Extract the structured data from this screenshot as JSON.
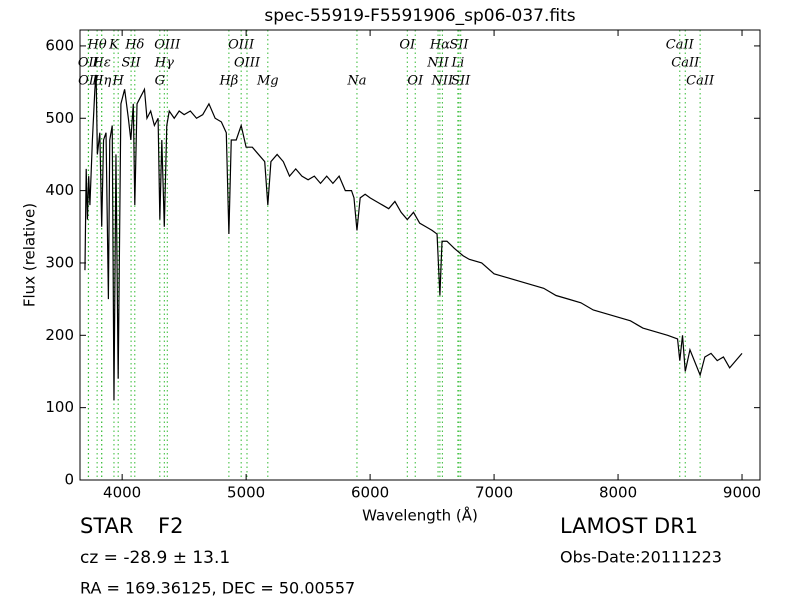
{
  "chart_data": {
    "type": "line",
    "title": "spec-55919-F5591906_sp06-037.fits",
    "x_label": "Wavelength (Å)",
    "y_label": "Flux (relative)",
    "xlim": [
      3660,
      9145
    ],
    "ylim": [
      0,
      622
    ],
    "xticks": [
      4000,
      5000,
      6000,
      7000,
      8000,
      9000
    ],
    "yticks": [
      0,
      100,
      200,
      300,
      400,
      500,
      600
    ],
    "color": "#000000",
    "line_color": "#33bb33",
    "x": [
      3700,
      3710,
      3720,
      3730,
      3740,
      3760,
      3780,
      3790,
      3800,
      3820,
      3835,
      3850,
      3870,
      3889,
      3900,
      3920,
      3934,
      3950,
      3968,
      3990,
      4020,
      4050,
      4070,
      4090,
      4102,
      4120,
      4150,
      4180,
      4200,
      4230,
      4260,
      4290,
      4304,
      4320,
      4340,
      4360,
      4380,
      4420,
      4460,
      4500,
      4550,
      4600,
      4650,
      4700,
      4750,
      4800,
      4840,
      4861,
      4880,
      4920,
      4960,
      5000,
      5050,
      5100,
      5150,
      5175,
      5200,
      5250,
      5300,
      5350,
      5400,
      5450,
      5500,
      5550,
      5600,
      5650,
      5700,
      5750,
      5800,
      5850,
      5870,
      5894,
      5920,
      5960,
      6000,
      6050,
      6100,
      6150,
      6200,
      6250,
      6300,
      6350,
      6400,
      6450,
      6500,
      6540,
      6563,
      6580,
      6620,
      6680,
      6750,
      6800,
      6900,
      7000,
      7100,
      7200,
      7300,
      7400,
      7500,
      7600,
      7700,
      7800,
      7900,
      8000,
      8100,
      8200,
      8300,
      8400,
      8480,
      8498,
      8520,
      8542,
      8580,
      8662,
      8700,
      8750,
      8800,
      8850,
      8900,
      8950,
      9000
    ],
    "values": [
      290,
      430,
      360,
      420,
      380,
      470,
      540,
      560,
      450,
      480,
      350,
      470,
      480,
      250,
      470,
      490,
      110,
      450,
      140,
      520,
      540,
      500,
      470,
      520,
      380,
      520,
      530,
      540,
      500,
      510,
      490,
      500,
      360,
      470,
      350,
      490,
      510,
      500,
      510,
      505,
      510,
      500,
      505,
      520,
      500,
      495,
      480,
      340,
      470,
      470,
      490,
      460,
      460,
      450,
      440,
      380,
      440,
      450,
      440,
      420,
      430,
      420,
      415,
      420,
      410,
      420,
      410,
      420,
      400,
      400,
      390,
      345,
      390,
      395,
      390,
      385,
      380,
      375,
      385,
      370,
      360,
      370,
      355,
      350,
      345,
      340,
      255,
      330,
      330,
      320,
      310,
      305,
      300,
      285,
      280,
      275,
      270,
      265,
      255,
      250,
      245,
      235,
      230,
      225,
      220,
      210,
      205,
      200,
      195,
      165,
      200,
      150,
      180,
      145,
      170,
      175,
      165,
      170,
      155,
      165,
      175
    ],
    "spectral_lines": [
      [
        {
          "label": "Hθ",
          "x": 3798
        },
        {
          "label": "K",
          "x": 3934
        },
        {
          "label": "Hδ",
          "x": 4102
        },
        {
          "label": "OIII",
          "x": 4364
        },
        {
          "label": "OIII",
          "x": 4960
        },
        {
          "label": "OI",
          "x": 6300
        },
        {
          "label": "Hα",
          "x": 6563
        },
        {
          "label": "SII",
          "x": 6717
        },
        {
          "label": "CaII",
          "x": 8498
        }
      ],
      [
        {
          "label": "OII",
          "x": 3727
        },
        {
          "label": "Hε",
          "x": 3835
        },
        {
          "label": "SII",
          "x": 4072
        },
        {
          "label": "Hγ",
          "x": 4340
        },
        {
          "label": "OIII",
          "x": 5007
        },
        {
          "label": "NII",
          "x": 6548
        },
        {
          "label": "Li",
          "x": 6708
        },
        {
          "label": "CaII",
          "x": 8542
        }
      ],
      [
        {
          "label": "OII",
          "x": 3729
        },
        {
          "label": "Hη",
          "x": 3835
        },
        {
          "label": "H",
          "x": 3968
        },
        {
          "label": "G",
          "x": 4304
        },
        {
          "label": "Hβ",
          "x": 4861
        },
        {
          "label": "Mg",
          "x": 5175
        },
        {
          "label": "Na",
          "x": 5894
        },
        {
          "label": "OI",
          "x": 6364
        },
        {
          "label": "NII",
          "x": 6583
        },
        {
          "label": "SII",
          "x": 6731
        },
        {
          "label": "CaII",
          "x": 8662
        }
      ]
    ],
    "object_class": "STAR",
    "subclass": "F2",
    "redshift": "cz = -28.9 ± 13.1",
    "coordinates": "RA = 169.36125, DEC = 50.00557",
    "survey": "LAMOST DR1",
    "obs_date": "Obs-Date:20111223"
  }
}
